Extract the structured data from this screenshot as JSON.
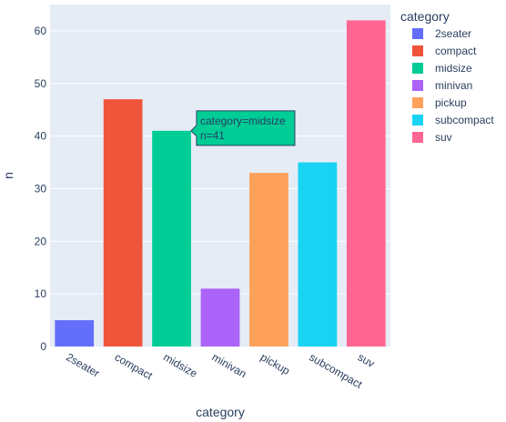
{
  "chart_data": {
    "type": "bar",
    "categories": [
      "2seater",
      "compact",
      "midsize",
      "minivan",
      "pickup",
      "subcompact",
      "suv"
    ],
    "values": [
      5,
      47,
      41,
      11,
      33,
      35,
      62
    ],
    "colors": [
      "#636efa",
      "#EF553B",
      "#00cc96",
      "#ab63fa",
      "#FFA15A",
      "#19d3f3",
      "#FF6692"
    ],
    "xlabel": "category",
    "ylabel": "n",
    "ylim": [
      0,
      65
    ],
    "yticks": [
      0,
      10,
      20,
      30,
      40,
      50,
      60
    ],
    "grid": true,
    "legend": {
      "title": "category",
      "placement": "right",
      "entries": [
        "2seater",
        "compact",
        "midsize",
        "minivan",
        "pickup",
        "subcompact",
        "suv"
      ]
    },
    "hover": {
      "category": "midsize",
      "line1": "category=midsize",
      "line2": "n=41"
    }
  }
}
